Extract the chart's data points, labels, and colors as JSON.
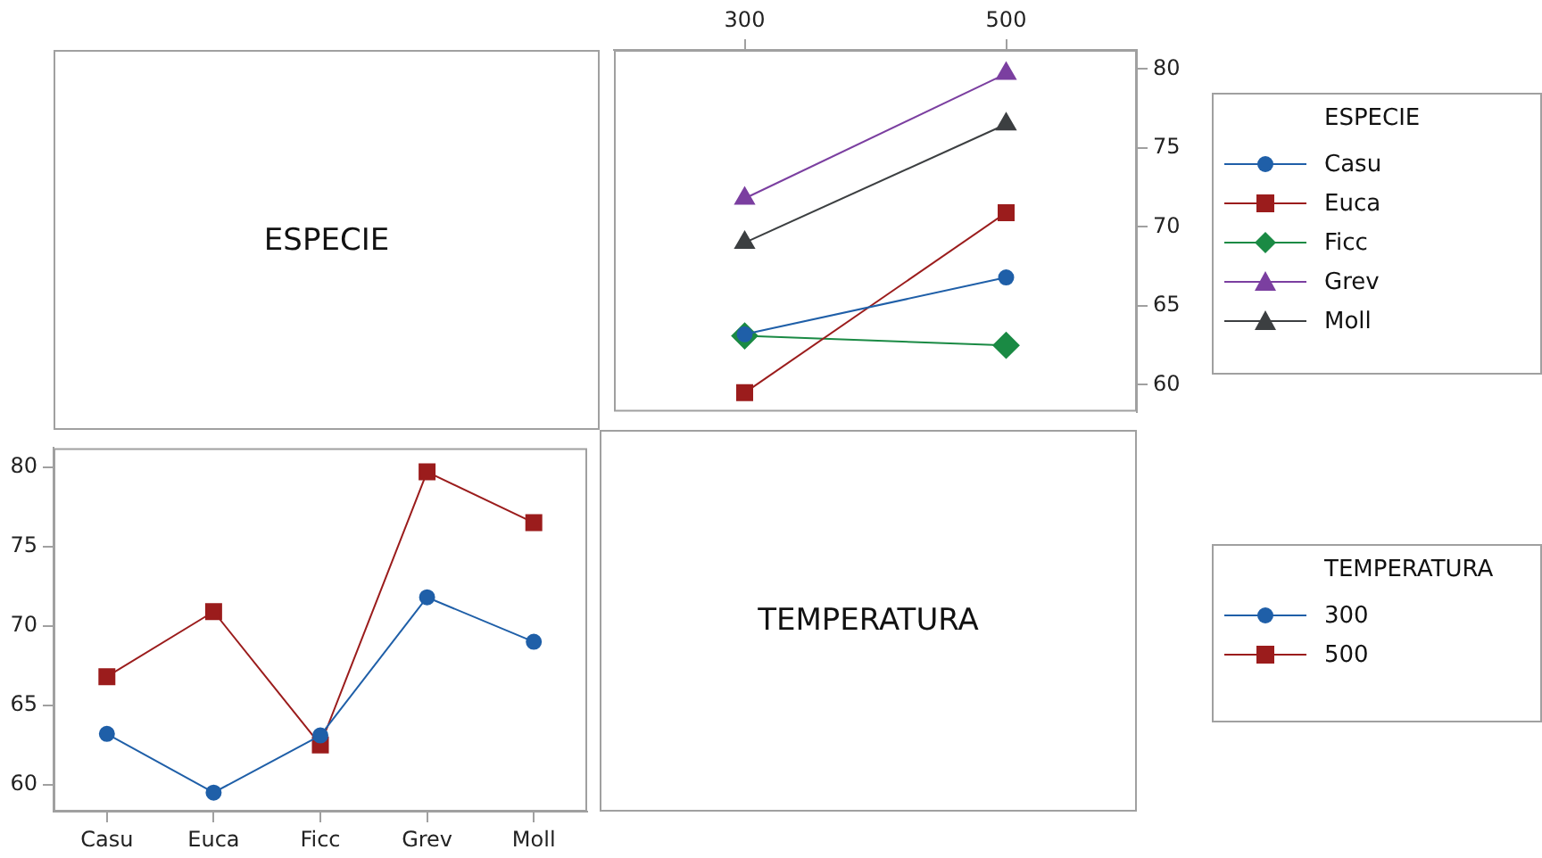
{
  "chart_data": [
    {
      "type": "line",
      "xlabel": "TEMPERATURA",
      "x": [
        300,
        500
      ],
      "xlim": [
        200,
        600
      ],
      "xticks": [
        300,
        500
      ],
      "ylim": [
        58.3,
        81.2
      ],
      "yticks": [
        60,
        65,
        70,
        75,
        80
      ],
      "legend": "right",
      "legend_title": "ESPECIE",
      "series": [
        {
          "name": "Casu",
          "color": "#1f5fa8",
          "marker": "circle",
          "values": [
            63.2,
            66.8
          ]
        },
        {
          "name": "Euca",
          "color": "#9b1c1c",
          "marker": "square",
          "values": [
            59.5,
            70.9
          ]
        },
        {
          "name": "Ficc",
          "color": "#1a8a44",
          "marker": "diamond",
          "values": [
            63.1,
            62.5
          ]
        },
        {
          "name": "Grev",
          "color": "#7b3fa0",
          "marker": "triangle",
          "values": [
            71.8,
            79.7
          ]
        },
        {
          "name": "Moll",
          "color": "#3c3f41",
          "marker": "triangle",
          "values": [
            69.0,
            76.5
          ]
        }
      ]
    },
    {
      "type": "line",
      "xlabel": "ESPECIE",
      "categories": [
        "Casu",
        "Euca",
        "Ficc",
        "Grev",
        "Moll"
      ],
      "ylim": [
        58.3,
        81.2
      ],
      "yticks": [
        60,
        65,
        70,
        75,
        80
      ],
      "legend": "right",
      "legend_title": "TEMPERATURA",
      "series": [
        {
          "name": "300",
          "color": "#1f5fa8",
          "marker": "circle",
          "values": [
            63.2,
            59.5,
            63.1,
            71.8,
            69.0
          ]
        },
        {
          "name": "500",
          "color": "#9b1c1c",
          "marker": "square",
          "values": [
            66.8,
            70.9,
            62.5,
            79.7,
            76.5
          ]
        }
      ]
    }
  ]
}
